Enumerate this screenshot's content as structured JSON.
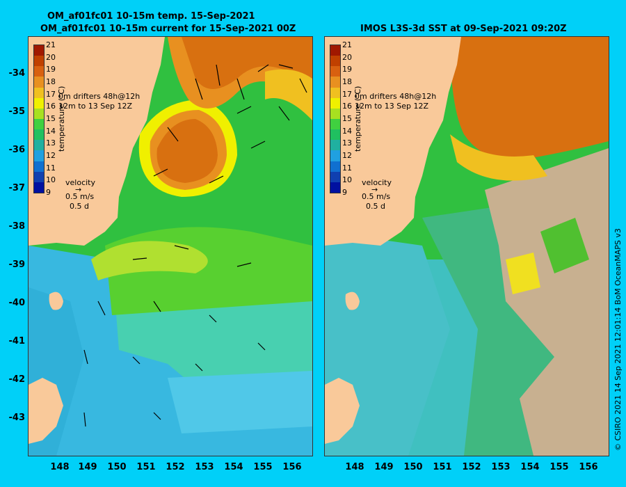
{
  "left_panel": {
    "title_line1": "OM_af01fc01 10-15m temp. 15-Sep-2021",
    "title_line2": "OM_af01fc01 10-15m current for 15-Sep-2021 00Z"
  },
  "right_panel": {
    "title": "IMOS L3S-3d SST at 09-Sep-2021 09:20Z"
  },
  "lat_ticks": [
    "-34",
    "-35",
    "-36",
    "-37",
    "-38",
    "-39",
    "-40",
    "-41",
    "-42",
    "-43"
  ],
  "lon_ticks": [
    "148",
    "149",
    "150",
    "151",
    "152",
    "153",
    "154",
    "155",
    "156"
  ],
  "colorbar": {
    "labels": [
      "21",
      "20",
      "19",
      "18",
      "17",
      "16",
      "15",
      "14",
      "13",
      "12",
      "11",
      "10",
      "9"
    ],
    "unit": "temperature (°C)",
    "colors": [
      "#a01800",
      "#c04000",
      "#d86010",
      "#e89020",
      "#f0c020",
      "#f0f000",
      "#a8e020",
      "#40d040",
      "#20c060",
      "#20b0a0",
      "#20a0e0",
      "#1070d0",
      "#1040b0",
      "#0010a0"
    ]
  },
  "legend": {
    "drifters_line1": "0m   drifters 48h@12h",
    "drifters_line2": "12m   to 13 Sep 12Z",
    "velocity_title": "velocity",
    "velocity_speed": "0.5 m/s",
    "velocity_time": "0.5 d"
  },
  "credit": "© CSIRO 2021  14 Sep 2021 12:01:14 BoM OceanMAPS v3",
  "colors": {
    "land": "#f9c99a",
    "background": "#00d0f8",
    "warm_core": "#d87010",
    "cool_shelf": "#40c0e0",
    "mid_water": "#30c040",
    "no_data": "#c8b090"
  }
}
